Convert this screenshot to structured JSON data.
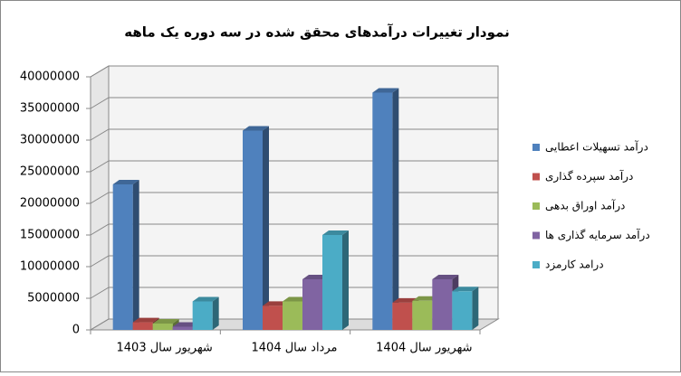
{
  "chart_data": {
    "type": "bar3d",
    "title": "نمودار تغییرات درآمدهای محقق شده در سه دوره یک ماهه",
    "categories": [
      "شهریور سال 1403",
      "مرداد سال 1404",
      "شهریور سال 1404"
    ],
    "series": [
      {
        "name": "درآمد تسهیلات اعطایی",
        "color": "#4f81bd",
        "values": [
          23000000,
          31500000,
          37500000
        ]
      },
      {
        "name": "درآمد سپرده گذاری",
        "color": "#c0504d",
        "values": [
          1200000,
          3800000,
          4300000
        ]
      },
      {
        "name": "درآمد اوراق بدهی",
        "color": "#9bbb59",
        "values": [
          1000000,
          4500000,
          4600000
        ]
      },
      {
        "name": "درآمد سرمایه گذاری ها",
        "color": "#8064a2",
        "values": [
          500000,
          8000000,
          8000000
        ]
      },
      {
        "name": "درامد کارمزد",
        "color": "#4bacc6",
        "values": [
          4500000,
          15000000,
          6100000
        ]
      }
    ],
    "ylim": [
      0,
      40000000
    ],
    "yticks": [
      0,
      5000000,
      10000000,
      15000000,
      20000000,
      25000000,
      30000000,
      35000000,
      40000000
    ],
    "grid": true,
    "legend": "right"
  }
}
